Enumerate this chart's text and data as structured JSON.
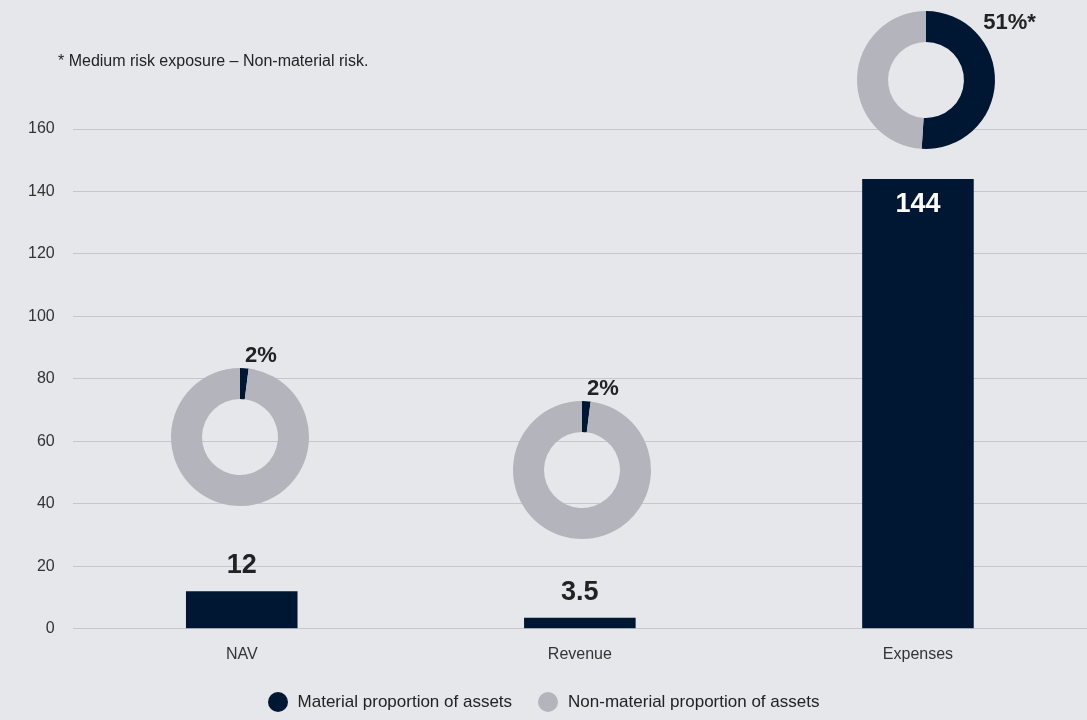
{
  "chart_data": [
    {
      "type": "bar",
      "categories": [
        "NAV",
        "Revenue",
        "Expenses"
      ],
      "values": [
        12,
        3.5,
        144
      ],
      "color": "#001733",
      "ylim": [
        0,
        160
      ],
      "yticks": [
        0,
        20,
        40,
        60,
        80,
        100,
        120,
        140,
        160
      ],
      "grid": "y",
      "data_labels": true,
      "annotations": [
        "* Medium risk exposure – Non-material risk."
      ]
    },
    {
      "type": "donut",
      "categories": [
        "Material proportion of assets",
        "Non-material proportion of assets"
      ],
      "values": [
        2,
        98
      ],
      "colors": [
        "#001733",
        "#b4b5bc"
      ],
      "value_labels": [
        "2%",
        null
      ],
      "legend": "bottom"
    },
    {
      "type": "donut",
      "categories": [
        null,
        null
      ],
      "values": [
        2,
        98
      ],
      "colors": [
        "#001733",
        "#b4b5bc"
      ],
      "value_labels": [
        "2%",
        null
      ]
    },
    {
      "type": "donut",
      "categories": [
        null,
        null
      ],
      "values": [
        51,
        49
      ],
      "colors": [
        "#001733",
        "#b4b5bc"
      ],
      "value_labels": [
        "51%*",
        null
      ]
    }
  ]
}
